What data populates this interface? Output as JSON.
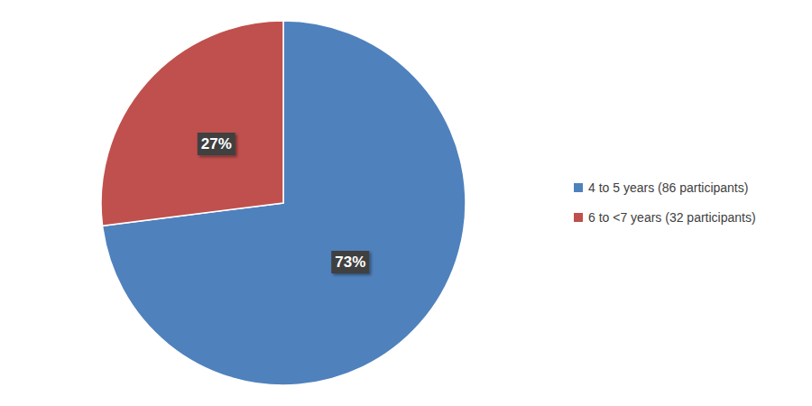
{
  "chart_data": {
    "type": "pie",
    "categories": [
      "4 to 5 years (86 participants)",
      "6 to <7 years (32 participants)"
    ],
    "values": [
      73,
      27
    ],
    "value_labels": [
      "73%",
      "27%"
    ],
    "colors": [
      "#4f81bd",
      "#c0504d"
    ],
    "data_labels": true,
    "legend": "right"
  }
}
